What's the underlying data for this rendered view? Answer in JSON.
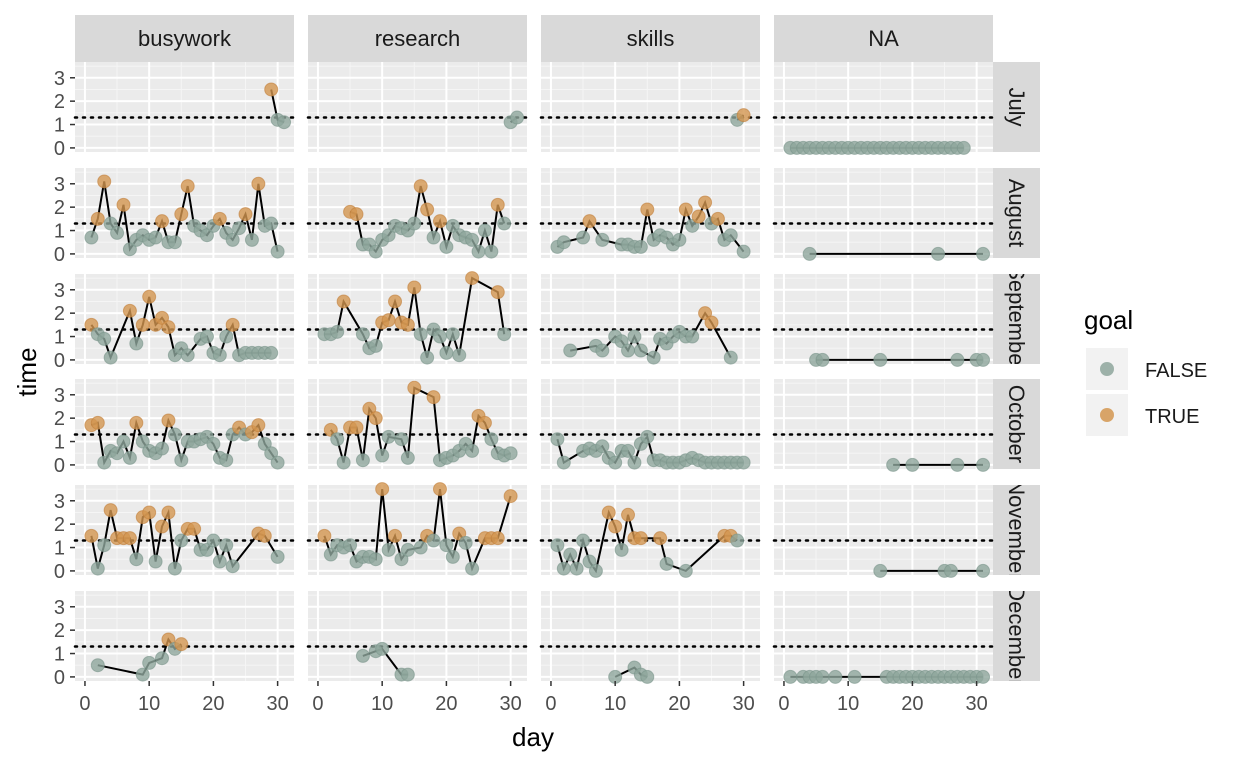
{
  "chart_data": {
    "type": "scatter",
    "title": "",
    "xlabel": "day",
    "ylabel": "time",
    "xlim": [
      0,
      31
    ],
    "ylim": [
      0,
      3.5
    ],
    "x_ticks": [
      0,
      10,
      20,
      30
    ],
    "y_ticks": [
      0,
      1,
      2,
      3
    ],
    "reference_line_y": 1.3,
    "grid": true,
    "legend_position": "right",
    "legend": {
      "title": "goal",
      "entries": [
        {
          "label": "FALSE",
          "color": "#8ea69c"
        },
        {
          "label": "TRUE",
          "color": "#d39650"
        }
      ]
    },
    "columns": [
      "busywork",
      "research",
      "skills",
      "NA"
    ],
    "rows": [
      "July",
      "August",
      "September",
      "October",
      "November",
      "December"
    ],
    "panels": [
      {
        "col": "busywork",
        "row": "July",
        "x": [
          29,
          30,
          31
        ],
        "y": [
          2.5,
          1.2,
          1.1
        ]
      },
      {
        "col": "research",
        "row": "July",
        "x": [
          30,
          31
        ],
        "y": [
          1.1,
          1.3
        ]
      },
      {
        "col": "skills",
        "row": "July",
        "x": [
          29,
          30
        ],
        "y": [
          1.2,
          1.4
        ]
      },
      {
        "col": "NA",
        "row": "July",
        "x": [
          1,
          2,
          3,
          4,
          5,
          6,
          7,
          8,
          9,
          10,
          11,
          12,
          13,
          14,
          15,
          16,
          17,
          18,
          19,
          20,
          21,
          22,
          23,
          24,
          25,
          26,
          27,
          28
        ],
        "y": [
          0,
          0,
          0,
          0,
          0,
          0,
          0,
          0,
          0,
          0,
          0,
          0,
          0,
          0,
          0,
          0,
          0,
          0,
          0,
          0,
          0,
          0,
          0,
          0,
          0,
          0,
          0,
          0
        ]
      },
      {
        "col": "busywork",
        "row": "August",
        "x": [
          1,
          2,
          3,
          4,
          5,
          6,
          7,
          8,
          9,
          10,
          11,
          12,
          13,
          14,
          15,
          16,
          17,
          18,
          19,
          20,
          21,
          22,
          23,
          24,
          25,
          26,
          27,
          28,
          29,
          30
        ],
        "y": [
          0.7,
          1.5,
          3.1,
          1.3,
          0.9,
          2.1,
          0.2,
          0.6,
          0.8,
          0.6,
          0.7,
          1.4,
          0.5,
          0.5,
          1.7,
          2.9,
          1.2,
          1.0,
          0.8,
          1.2,
          1.5,
          0.9,
          0.6,
          1.1,
          1.7,
          0.6,
          3.0,
          1.2,
          1.3,
          0.1
        ]
      },
      {
        "col": "research",
        "row": "August",
        "x": [
          5,
          6,
          7,
          8,
          9,
          10,
          11,
          12,
          13,
          14,
          15,
          16,
          17,
          18,
          19,
          20,
          21,
          22,
          23,
          24,
          25,
          26,
          27,
          28,
          29
        ],
        "y": [
          1.8,
          1.7,
          0.4,
          0.4,
          0.1,
          0.6,
          0.8,
          1.2,
          1.1,
          1.0,
          1.3,
          2.9,
          1.9,
          0.7,
          1.4,
          0.3,
          1.2,
          0.8,
          0.7,
          0.6,
          0.1,
          1.0,
          0.1,
          2.1,
          1.3
        ]
      },
      {
        "col": "skills",
        "row": "August",
        "x": [
          1,
          2,
          5,
          6,
          8,
          11,
          12,
          13,
          14,
          15,
          16,
          17,
          18,
          19,
          20,
          21,
          22,
          23,
          24,
          25,
          26,
          27,
          28,
          30
        ],
        "y": [
          0.3,
          0.5,
          0.7,
          1.4,
          0.6,
          0.4,
          0.4,
          0.3,
          0.3,
          1.9,
          0.6,
          0.8,
          0.7,
          0.4,
          0.6,
          1.9,
          1.2,
          1.6,
          2.2,
          1.3,
          1.5,
          0.6,
          0.8,
          0.1
        ]
      },
      {
        "col": "NA",
        "row": "August",
        "x": [
          4,
          24,
          31
        ],
        "y": [
          0,
          0,
          0
        ]
      },
      {
        "col": "busywork",
        "row": "September",
        "x": [
          1,
          2,
          3,
          4,
          7,
          8,
          9,
          10,
          11,
          12,
          13,
          14,
          15,
          16,
          18,
          19,
          20,
          21,
          22,
          23,
          24,
          25,
          26,
          27,
          28,
          29
        ],
        "y": [
          1.5,
          1.1,
          0.9,
          0.1,
          2.1,
          0.7,
          1.5,
          2.7,
          1.5,
          1.8,
          1.4,
          0.2,
          0.5,
          0.2,
          0.9,
          1.0,
          0.3,
          0.2,
          1.0,
          1.5,
          0.2,
          0.3,
          0.3,
          0.3,
          0.3,
          0.3
        ]
      },
      {
        "col": "research",
        "row": "September",
        "x": [
          1,
          2,
          3,
          4,
          7,
          8,
          9,
          10,
          11,
          12,
          13,
          14,
          15,
          16,
          17,
          18,
          19,
          20,
          21,
          22,
          24,
          28,
          29
        ],
        "y": [
          1.1,
          1.1,
          1.2,
          2.5,
          1.1,
          0.5,
          0.6,
          1.6,
          1.7,
          2.5,
          1.6,
          1.5,
          3.1,
          1.1,
          0.1,
          1.3,
          1.0,
          0.3,
          1.1,
          0.2,
          3.5,
          2.9,
          1.1
        ]
      },
      {
        "col": "skills",
        "row": "September",
        "x": [
          3,
          7,
          8,
          10,
          11,
          12,
          13,
          14,
          16,
          17,
          18,
          19,
          20,
          21,
          22,
          24,
          25,
          28
        ],
        "y": [
          0.4,
          0.6,
          0.4,
          1.0,
          0.8,
          0.4,
          1.0,
          0.4,
          0.1,
          0.9,
          0.7,
          1.0,
          1.2,
          1.0,
          1.0,
          2.0,
          1.6,
          0.1
        ]
      },
      {
        "col": "NA",
        "row": "September",
        "x": [
          5,
          6,
          15,
          27,
          30,
          31
        ],
        "y": [
          0,
          0,
          0,
          0,
          0,
          0
        ]
      },
      {
        "col": "busywork",
        "row": "October",
        "x": [
          1,
          2,
          3,
          4,
          5,
          6,
          7,
          8,
          9,
          10,
          11,
          12,
          13,
          14,
          15,
          16,
          17,
          18,
          19,
          20,
          21,
          22,
          23,
          24,
          25,
          26,
          27,
          28,
          29,
          30
        ],
        "y": [
          1.7,
          1.8,
          0.1,
          0.6,
          0.5,
          1.0,
          0.3,
          1.8,
          1.0,
          0.6,
          0.5,
          0.7,
          1.9,
          1.3,
          0.2,
          1.0,
          1.0,
          1.1,
          1.2,
          0.9,
          0.3,
          0.2,
          1.3,
          1.6,
          1.3,
          1.4,
          1.7,
          0.9,
          0.5,
          0.1
        ]
      },
      {
        "col": "research",
        "row": "October",
        "x": [
          2,
          3,
          4,
          5,
          6,
          7,
          8,
          9,
          10,
          11,
          13,
          14,
          15,
          18,
          19,
          20,
          21,
          22,
          23,
          24,
          25,
          26,
          27,
          28,
          29,
          30
        ],
        "y": [
          1.5,
          1.1,
          0.1,
          1.6,
          1.6,
          0.2,
          2.4,
          2.0,
          0.4,
          1.2,
          1.1,
          0.3,
          3.3,
          2.9,
          0.2,
          0.3,
          0.4,
          0.6,
          0.9,
          0.6,
          2.1,
          1.8,
          1.1,
          0.5,
          0.4,
          0.5
        ]
      },
      {
        "col": "skills",
        "row": "October",
        "x": [
          1,
          2,
          5,
          6,
          7,
          8,
          9,
          10,
          11,
          12,
          13,
          14,
          15,
          16,
          17,
          18,
          19,
          20,
          21,
          22,
          23,
          24,
          25,
          26,
          27,
          28,
          29,
          30
        ],
        "y": [
          1.1,
          0.1,
          0.6,
          0.7,
          0.6,
          0.8,
          0.3,
          0.1,
          0.6,
          0.6,
          0.1,
          0.9,
          1.2,
          0.2,
          0.2,
          0.1,
          0.1,
          0.1,
          0.2,
          0.3,
          0.2,
          0.1,
          0.1,
          0.1,
          0.1,
          0.1,
          0.1,
          0.1
        ]
      },
      {
        "col": "NA",
        "row": "October",
        "x": [
          17,
          20,
          27,
          31
        ],
        "y": [
          0,
          0,
          0,
          0
        ]
      },
      {
        "col": "busywork",
        "row": "November",
        "x": [
          1,
          2,
          3,
          4,
          5,
          6,
          7,
          8,
          9,
          10,
          11,
          12,
          13,
          14,
          15,
          16,
          17,
          18,
          19,
          20,
          21,
          22,
          23,
          27,
          28,
          30
        ],
        "y": [
          1.5,
          0.1,
          1.1,
          2.6,
          1.4,
          1.4,
          1.4,
          0.5,
          2.3,
          2.5,
          0.4,
          1.9,
          2.5,
          0.1,
          1.3,
          1.8,
          1.8,
          0.9,
          0.9,
          1.3,
          0.4,
          1.1,
          0.2,
          1.6,
          1.5,
          0.6
        ]
      },
      {
        "col": "research",
        "row": "November",
        "x": [
          1,
          2,
          3,
          4,
          5,
          6,
          7,
          8,
          9,
          10,
          11,
          12,
          13,
          14,
          16,
          17,
          18,
          19,
          20,
          21,
          22,
          23,
          24,
          26,
          27,
          28,
          30
        ],
        "y": [
          1.5,
          0.7,
          1.1,
          1.0,
          1.1,
          0.4,
          0.6,
          0.6,
          0.5,
          3.5,
          0.9,
          1.5,
          0.5,
          0.9,
          1.0,
          1.5,
          1.3,
          3.5,
          1.1,
          0.6,
          1.6,
          1.2,
          0.1,
          1.4,
          1.4,
          1.4,
          3.2
        ]
      },
      {
        "col": "skills",
        "row": "November",
        "x": [
          1,
          2,
          3,
          4,
          5,
          6,
          7,
          9,
          10,
          11,
          12,
          13,
          14,
          17,
          18,
          21,
          27,
          28,
          29
        ],
        "y": [
          1.1,
          0.1,
          0.7,
          0.1,
          1.3,
          0.4,
          0.0,
          2.5,
          1.9,
          0.9,
          2.4,
          1.4,
          1.4,
          1.4,
          0.3,
          0.0,
          1.5,
          1.5,
          1.3
        ]
      },
      {
        "col": "NA",
        "row": "November",
        "x": [
          15,
          25,
          26,
          31
        ],
        "y": [
          0,
          0,
          0,
          0
        ]
      },
      {
        "col": "busywork",
        "row": "December",
        "x": [
          2,
          9,
          10,
          12,
          13,
          14,
          15
        ],
        "y": [
          0.5,
          0.1,
          0.6,
          0.8,
          1.6,
          1.2,
          1.4
        ]
      },
      {
        "col": "research",
        "row": "December",
        "x": [
          7,
          9,
          10,
          13,
          14
        ],
        "y": [
          0.9,
          1.1,
          1.2,
          0.1,
          0.1
        ]
      },
      {
        "col": "skills",
        "row": "December",
        "x": [
          10,
          13,
          14,
          15
        ],
        "y": [
          0.0,
          0.4,
          0.1,
          0.0
        ]
      },
      {
        "col": "NA",
        "row": "December",
        "x": [
          1,
          3,
          4,
          5,
          6,
          8,
          11,
          16,
          17,
          18,
          19,
          20,
          21,
          22,
          23,
          24,
          25,
          26,
          27,
          28,
          29,
          30,
          31
        ],
        "y": [
          0,
          0,
          0,
          0,
          0,
          0,
          0,
          0,
          0,
          0,
          0,
          0,
          0,
          0,
          0,
          0,
          0,
          0,
          0,
          0,
          0,
          0,
          0
        ]
      }
    ],
    "goal_threshold": 1.3,
    "colors": {
      "panel_bg": "#ebebeb",
      "grid_major": "#ffffff",
      "strip_bg": "#d9d9d9",
      "line": "#000000",
      "point_false": "#8ea69c",
      "point_true": "#d39650"
    }
  }
}
